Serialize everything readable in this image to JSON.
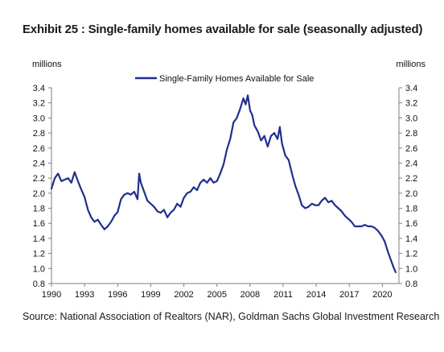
{
  "title": "Exhibit 25 : Single-family homes available for sale (seasonally adjusted)",
  "source": "Source: National Association of Realtors (NAR), Goldman Sachs Global Investment Research",
  "chart_data": {
    "type": "line",
    "y_unit_left": "millions",
    "y_unit_right": "millions",
    "xlim": [
      1990,
      2021.5
    ],
    "ylim": [
      0.8,
      3.4
    ],
    "x_ticks": [
      1990,
      1993,
      1996,
      1999,
      2002,
      2005,
      2008,
      2011,
      2014,
      2017,
      2020
    ],
    "y_ticks": [
      0.8,
      1.0,
      1.2,
      1.4,
      1.6,
      1.8,
      2.0,
      2.2,
      2.4,
      2.6,
      2.8,
      3.0,
      3.2,
      3.4
    ],
    "y_tick_labels": [
      "0.8",
      "1.0",
      "1.2",
      "1.4",
      "1.6",
      "1.8",
      "2.0",
      "2.2",
      "2.4",
      "2.6",
      "2.8",
      "3.0",
      "3.2",
      "3.4"
    ],
    "legend_position": "top-center",
    "color": "#1f2f8f",
    "series": [
      {
        "name": "Single-Family Homes Available for Sale",
        "x": [
          1990.0,
          1990.3,
          1990.6,
          1990.9,
          1991.2,
          1991.5,
          1991.8,
          1992.1,
          1992.4,
          1992.7,
          1993.0,
          1993.3,
          1993.6,
          1993.9,
          1994.2,
          1994.5,
          1994.8,
          1995.1,
          1995.4,
          1995.7,
          1996.0,
          1996.3,
          1996.6,
          1996.9,
          1997.2,
          1997.5,
          1997.8,
          1997.95,
          1998.1,
          1998.4,
          1998.7,
          1999.0,
          1999.3,
          1999.6,
          1999.9,
          2000.2,
          2000.5,
          2000.8,
          2001.1,
          2001.4,
          2001.7,
          2002.0,
          2002.3,
          2002.6,
          2002.9,
          2003.2,
          2003.5,
          2003.8,
          2004.1,
          2004.4,
          2004.7,
          2005.0,
          2005.3,
          2005.6,
          2005.9,
          2006.2,
          2006.5,
          2006.8,
          2007.1,
          2007.4,
          2007.6,
          2007.8,
          2008.0,
          2008.2,
          2008.4,
          2008.7,
          2009.0,
          2009.3,
          2009.6,
          2009.9,
          2010.2,
          2010.5,
          2010.7,
          2010.9,
          2011.2,
          2011.5,
          2011.8,
          2012.1,
          2012.4,
          2012.7,
          2013.0,
          2013.3,
          2013.6,
          2013.9,
          2014.2,
          2014.5,
          2014.8,
          2015.1,
          2015.4,
          2015.7,
          2016.0,
          2016.3,
          2016.6,
          2016.9,
          2017.2,
          2017.5,
          2017.8,
          2018.1,
          2018.4,
          2018.7,
          2019.0,
          2019.3,
          2019.6,
          2019.9,
          2020.2,
          2020.5,
          2020.8,
          2021.0,
          2021.2
        ],
        "y": [
          2.06,
          2.2,
          2.26,
          2.16,
          2.18,
          2.2,
          2.14,
          2.28,
          2.16,
          2.05,
          1.95,
          1.78,
          1.68,
          1.62,
          1.65,
          1.58,
          1.52,
          1.56,
          1.62,
          1.7,
          1.75,
          1.92,
          1.98,
          2.0,
          1.98,
          2.02,
          1.92,
          2.26,
          2.14,
          2.02,
          1.9,
          1.86,
          1.82,
          1.76,
          1.74,
          1.78,
          1.68,
          1.74,
          1.78,
          1.86,
          1.82,
          1.94,
          2.0,
          2.02,
          2.08,
          2.04,
          2.14,
          2.18,
          2.14,
          2.2,
          2.14,
          2.16,
          2.26,
          2.38,
          2.58,
          2.72,
          2.94,
          3.0,
          3.12,
          3.26,
          3.18,
          3.3,
          3.1,
          3.04,
          2.9,
          2.82,
          2.7,
          2.76,
          2.62,
          2.76,
          2.8,
          2.72,
          2.88,
          2.66,
          2.5,
          2.44,
          2.26,
          2.1,
          1.98,
          1.84,
          1.8,
          1.82,
          1.86,
          1.84,
          1.84,
          1.9,
          1.94,
          1.88,
          1.9,
          1.84,
          1.8,
          1.76,
          1.7,
          1.66,
          1.62,
          1.56,
          1.56,
          1.56,
          1.58,
          1.56,
          1.56,
          1.54,
          1.5,
          1.44,
          1.36,
          1.22,
          1.1,
          1.02,
          0.95
        ]
      }
    ]
  }
}
